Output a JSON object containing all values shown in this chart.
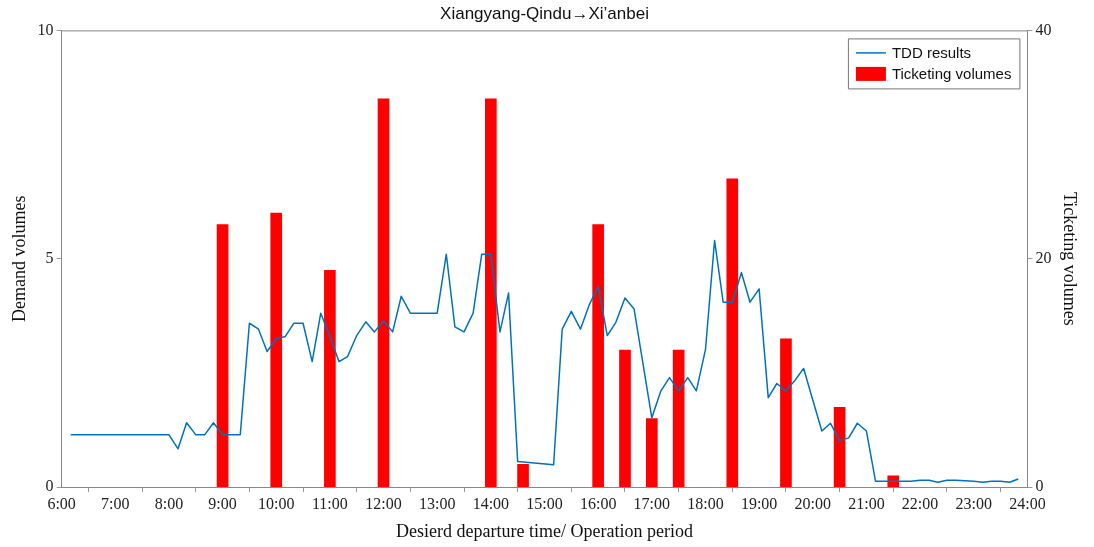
{
  "chart_data": {
    "type": "line",
    "title": "Xiangyang-Qindu→Xi’anbei",
    "xlabel": "Desierd departure time/ Operation period",
    "ylabel": "Demand volumes",
    "y2label": "Ticketing volumes",
    "xlim": [
      6,
      24
    ],
    "xticks": [
      {
        "value": 6,
        "label": "6:00"
      },
      {
        "value": 7,
        "label": "7:00"
      },
      {
        "value": 8,
        "label": "8:00"
      },
      {
        "value": 9,
        "label": "9:00"
      },
      {
        "value": 10,
        "label": "10:00"
      },
      {
        "value": 11,
        "label": "11:00"
      },
      {
        "value": 12,
        "label": "12:00"
      },
      {
        "value": 13,
        "label": "13:00"
      },
      {
        "value": 14,
        "label": "14:00"
      },
      {
        "value": 15,
        "label": "15:00"
      },
      {
        "value": 16,
        "label": "16:00"
      },
      {
        "value": 17,
        "label": "17:00"
      },
      {
        "value": 18,
        "label": "18:00"
      },
      {
        "value": 19,
        "label": "19:00"
      },
      {
        "value": 20,
        "label": "20:00"
      },
      {
        "value": 21,
        "label": "21:00"
      },
      {
        "value": 22,
        "label": "22:00"
      },
      {
        "value": 23,
        "label": "23:00"
      },
      {
        "value": 24,
        "label": "24:00"
      }
    ],
    "ylim": [
      0,
      10
    ],
    "yticks": [
      0,
      5,
      10
    ],
    "y2lim": [
      0,
      40
    ],
    "y2ticks": [
      0,
      20,
      40
    ],
    "grid": false,
    "legend": "top right",
    "series": [
      {
        "name": "TDD results",
        "color": "#0072bd",
        "x": [
          6.17,
          8,
          8.17,
          8.33,
          8.5,
          8.67,
          8.83,
          9,
          9.33,
          9.5,
          9.67,
          9.83,
          10,
          10.17,
          10.33,
          10.5,
          10.67,
          10.83,
          11,
          11.17,
          11.33,
          11.5,
          11.67,
          11.83,
          12,
          12.17,
          12.33,
          12.5,
          13,
          13.17,
          13.33,
          13.5,
          13.67,
          13.83,
          14,
          14.17,
          14.33,
          14.5,
          15.17,
          15.33,
          15.5,
          15.67,
          15.83,
          16,
          16.17,
          16.33,
          16.5,
          16.67,
          17,
          17.17,
          17.33,
          17.5,
          17.67,
          17.83,
          18,
          18.17,
          18.33,
          18.5,
          18.67,
          18.83,
          19,
          19.17,
          19.33,
          19.5,
          19.67,
          19.83,
          20,
          20.17,
          20.33,
          20.5,
          20.67,
          20.83,
          21,
          21.17,
          21.5,
          21.83,
          22,
          22.17,
          22.33,
          22.5,
          22.67,
          23,
          23.17,
          23.33,
          23.5,
          23.67,
          23.83
        ],
        "values": [
          1.15,
          1.15,
          0.84,
          1.41,
          1.15,
          1.15,
          1.41,
          1.15,
          1.15,
          3.59,
          3.46,
          2.97,
          3.25,
          3.3,
          3.59,
          3.59,
          2.75,
          3.81,
          3.3,
          2.75,
          2.86,
          3.32,
          3.62,
          3.4,
          3.64,
          3.4,
          4.18,
          3.81,
          3.81,
          5.1,
          3.51,
          3.4,
          3.81,
          5.1,
          5.1,
          3.4,
          4.25,
          0.56,
          0.49,
          3.46,
          3.85,
          3.46,
          3.98,
          4.4,
          3.32,
          3.61,
          4.14,
          3.9,
          1.52,
          2.11,
          2.4,
          2.11,
          2.4,
          2.11,
          3.01,
          5.4,
          4.05,
          4.05,
          4.7,
          4.05,
          4.34,
          1.96,
          2.27,
          2.11,
          2.34,
          2.6,
          1.91,
          1.23,
          1.4,
          1.02,
          1.08,
          1.4,
          1.23,
          0.13,
          0.13,
          0.13,
          0.15,
          0.15,
          0.11,
          0.15,
          0.15,
          0.13,
          0.11,
          0.13,
          0.13,
          0.11,
          0.18
        ]
      },
      {
        "name": "Ticketing volumes",
        "type": "bar",
        "axis": "y2",
        "color": "#ff0000",
        "x": [
          9,
          10,
          11,
          12,
          14,
          14.6,
          16,
          16.5,
          17,
          17.5,
          18.5,
          19.5,
          20.5,
          21.5
        ],
        "values": [
          23,
          24,
          19,
          34,
          34,
          2,
          23,
          12,
          6,
          12,
          27,
          13,
          7,
          1
        ]
      }
    ]
  }
}
